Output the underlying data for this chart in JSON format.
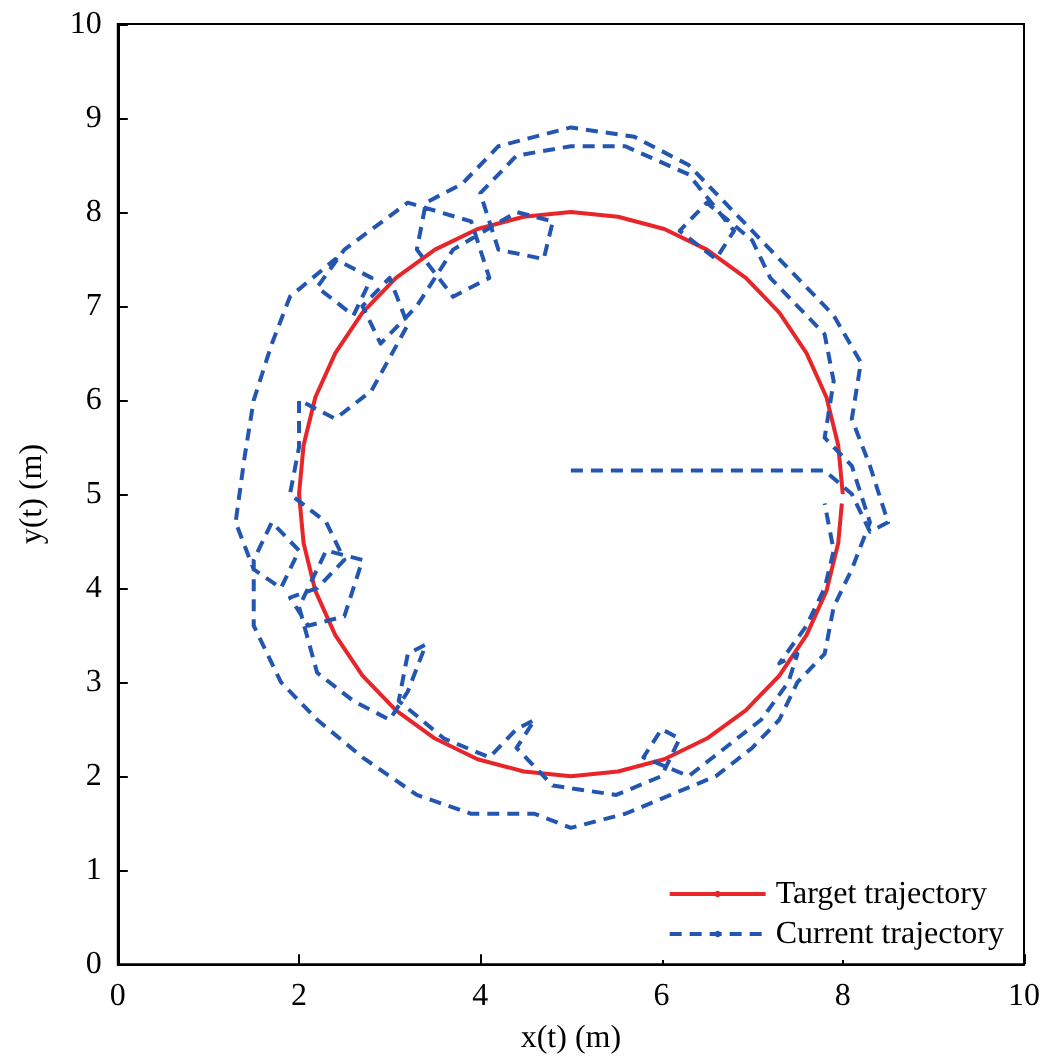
{
  "chart_data": {
    "type": "line",
    "xlabel": "x(t) (m)",
    "ylabel": "y(t) (m)",
    "xlim": [
      0,
      10
    ],
    "xticks": [
      0,
      2,
      4,
      6,
      8,
      10
    ],
    "ylim": [
      0,
      10
    ],
    "yticks": [
      0,
      1,
      2,
      3,
      4,
      5,
      6,
      7,
      8,
      9,
      10
    ],
    "grid": false,
    "legend": "bottom right",
    "marker": "none",
    "series": [
      {
        "name": "Target trajectory",
        "color": "#e8262a",
        "line_style": "solid",
        "x": [
          8,
          7.95,
          7.82,
          7.6,
          7.3,
          6.93,
          6.5,
          6.03,
          5.52,
          5,
          4.48,
          3.97,
          3.5,
          3.07,
          2.7,
          2.4,
          2.18,
          2.05,
          2,
          2.05,
          2.18,
          2.4,
          2.7,
          3.07,
          3.5,
          3.97,
          4.48,
          5,
          5.52,
          6.03,
          6.5,
          6.93,
          7.3,
          7.6,
          7.82,
          7.95,
          7.99
        ],
        "values": [
          5,
          5.52,
          6.03,
          6.5,
          6.93,
          7.3,
          7.6,
          7.82,
          7.95,
          8,
          7.95,
          7.82,
          7.6,
          7.3,
          6.93,
          6.5,
          6.03,
          5.52,
          5,
          4.48,
          3.97,
          3.5,
          3.07,
          2.7,
          2.4,
          2.18,
          2.05,
          2,
          2.05,
          2.18,
          2.4,
          2.7,
          3.07,
          3.5,
          3.97,
          4.48,
          4.9
        ]
      },
      {
        "name": "Current trajectory",
        "color": "#2356b0",
        "line_style": "dashed",
        "x": [
          5,
          6.5,
          7.8,
          8.1,
          8.3,
          8.5,
          8.3,
          8.1,
          8.2,
          7.9,
          7.4,
          6.9,
          6.3,
          5.7,
          5,
          4.2,
          3.8,
          3.4,
          3.3,
          3.7,
          4.1,
          3.9,
          3.2,
          2.5,
          2.2,
          2.6,
          2.8,
          2.4,
          1.9,
          1.7,
          1.5,
          1.4,
          1.3,
          1.5,
          1.8,
          2,
          1.7,
          1.5,
          1.5,
          1.8,
          2.2,
          2.7,
          3.3,
          3.9,
          4.6,
          5,
          5.6,
          6.1,
          6.6,
          7,
          7.3,
          7.5,
          7.8,
          7.9,
          8.1,
          8.3,
          8.1,
          7.8,
          7.9,
          7.8,
          7.5,
          7.2,
          7,
          6.5,
          6.2,
          6.6,
          6.8,
          6.3,
          5.6,
          5,
          4.4,
          4,
          4.2,
          4.7,
          4.8,
          4.4,
          3.7,
          3.3,
          2.9,
          2.7,
          3,
          3.2,
          2.8,
          2.4,
          2,
          2,
          1.9,
          2.3,
          2.5,
          2.2,
          1.9,
          2.1,
          2.5,
          2.7,
          2.3,
          2,
          2.2,
          2.6,
          3,
          3.2,
          3.4,
          3.2,
          3.1,
          3.6,
          4.1,
          4.4,
          4.6,
          4.4,
          4.8,
          5.5,
          6,
          6.2,
          6,
          5.8,
          6.3,
          6.7,
          7.1,
          7.4,
          7.5,
          7.3,
          7.6,
          7.8,
          7.9,
          7.8
        ],
        "values": [
          5.25,
          5.25,
          5.25,
          5,
          4.6,
          4.7,
          5.3,
          5.8,
          6.4,
          6.9,
          7.4,
          7.9,
          8.5,
          8.8,
          8.9,
          8.7,
          8.3,
          8.1,
          7.6,
          7.1,
          7.3,
          7.9,
          8.1,
          7.6,
          7.2,
          6.9,
          7.3,
          7.5,
          7.1,
          6.6,
          6,
          5.4,
          4.7,
          4.2,
          4,
          4.4,
          4.7,
          4.3,
          3.6,
          3,
          2.6,
          2.2,
          1.8,
          1.6,
          1.6,
          1.45,
          1.6,
          1.8,
          2,
          2.3,
          2.6,
          3,
          3.3,
          3.8,
          4.2,
          4.7,
          5.3,
          5.6,
          6.2,
          6.7,
          7,
          7.3,
          7.7,
          8.1,
          7.8,
          7.5,
          7.8,
          8.4,
          8.7,
          8.7,
          8.6,
          8.2,
          7.6,
          7.5,
          7.9,
          8,
          7.6,
          7,
          6.6,
          7,
          7.3,
          6.8,
          6.1,
          5.8,
          6,
          5.5,
          5,
          4.7,
          4.3,
          4,
          3.9,
          3.6,
          3.7,
          4.3,
          4.4,
          3.8,
          3.1,
          2.8,
          2.6,
          2.9,
          3.4,
          3.3,
          2.8,
          2.4,
          2.2,
          2.5,
          2.6,
          2.3,
          1.9,
          1.8,
          2,
          2.4,
          2.5,
          2.2,
          2,
          2.3,
          2.6,
          3,
          3.3,
          3.2,
          3.6,
          4,
          4.4,
          4.9
        ]
      }
    ]
  }
}
